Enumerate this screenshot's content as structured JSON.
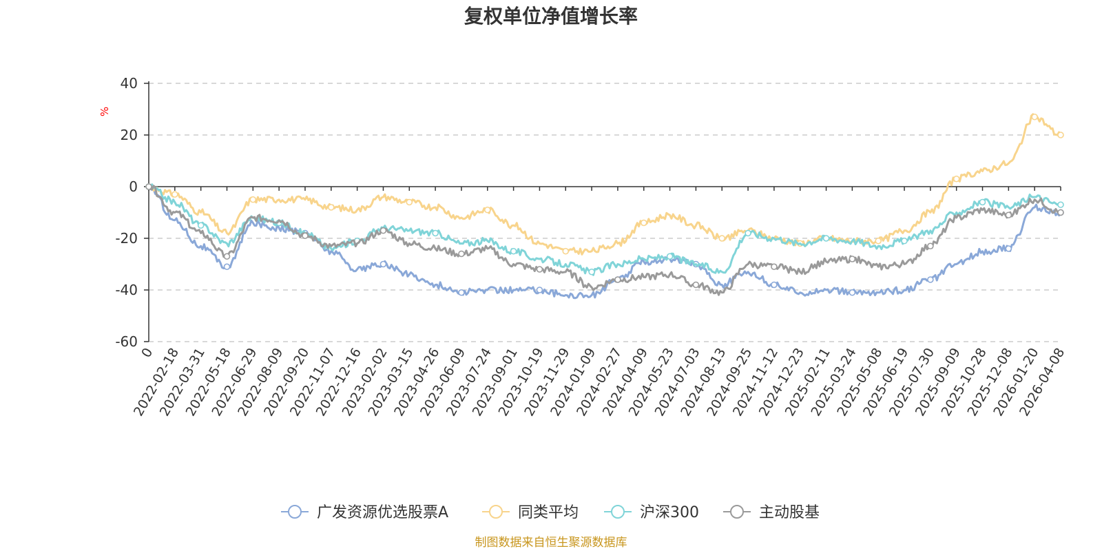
{
  "chart_data": {
    "type": "line",
    "title": "复权单位净值增长率",
    "ylabel": "%",
    "xlabel": "",
    "ylim": [
      -60,
      40
    ],
    "yticks": [
      40,
      20,
      0,
      -20,
      -40,
      -60
    ],
    "grid": true,
    "legend_position": "bottom-center",
    "categories": [
      "0",
      "2022-02-18",
      "2022-03-31",
      "2022-05-18",
      "2022-06-29",
      "2022-08-09",
      "2022-09-20",
      "2022-11-07",
      "2022-12-16",
      "2023-02-02",
      "2023-03-15",
      "2023-04-26",
      "2023-06-09",
      "2023-07-24",
      "2023-09-01",
      "2023-10-19",
      "2023-11-29",
      "2024-01-09",
      "2024-02-27",
      "2024-04-09",
      "2024-05-23",
      "2024-07-03",
      "2024-08-13",
      "2024-09-25",
      "2024-11-12",
      "2024-12-23",
      "2025-02-11",
      "2025-03-24",
      "2025-05-08",
      "2025-06-19",
      "2025-07-30",
      "2025-09-09",
      "2025-10-28",
      "2025-12-08",
      "2026-01-20",
      "2026-04-08"
    ],
    "series": [
      {
        "name": "广发资源优选股票A",
        "color": "#8aa8d8",
        "values": [
          0,
          -13,
          -23,
          -31,
          -14,
          -16,
          -18,
          -25,
          -32,
          -30,
          -34,
          -38,
          -41,
          -40,
          -40,
          -40,
          -42,
          -42,
          -36,
          -29,
          -28,
          -30,
          -38,
          -33,
          -38,
          -41,
          -40,
          -41,
          -41,
          -40,
          -36,
          -30,
          -25,
          -24,
          -8,
          -10
        ]
      },
      {
        "name": "同类平均",
        "color": "#f8d48c",
        "values": [
          0,
          -3,
          -10,
          -18,
          -5,
          -5,
          -5,
          -8,
          -9,
          -4,
          -6,
          -8,
          -12,
          -9,
          -15,
          -22,
          -25,
          -25,
          -22,
          -14,
          -11,
          -15,
          -20,
          -17,
          -20,
          -22,
          -20,
          -21,
          -21,
          -17,
          -10,
          3,
          6,
          9,
          27,
          20
        ]
      },
      {
        "name": "沪深300",
        "color": "#80d4d8",
        "values": [
          0,
          -6,
          -15,
          -22,
          -12,
          -14,
          -18,
          -24,
          -21,
          -16,
          -17,
          -18,
          -22,
          -21,
          -25,
          -28,
          -30,
          -33,
          -30,
          -28,
          -27,
          -30,
          -33,
          -18,
          -20,
          -22,
          -20,
          -21,
          -23,
          -21,
          -17,
          -10,
          -6,
          -8,
          -4,
          -7
        ]
      },
      {
        "name": "主动股基",
        "color": "#9a9a9a",
        "values": [
          0,
          -10,
          -18,
          -27,
          -12,
          -13,
          -19,
          -23,
          -22,
          -17,
          -22,
          -24,
          -26,
          -24,
          -30,
          -32,
          -33,
          -39,
          -36,
          -35,
          -34,
          -38,
          -41,
          -30,
          -31,
          -33,
          -29,
          -28,
          -31,
          -30,
          -23,
          -12,
          -9,
          -11,
          -5,
          -10
        ]
      }
    ]
  },
  "legend": {
    "items": [
      {
        "label": "广发资源优选股票A",
        "color": "#8aa8d8"
      },
      {
        "label": "同类平均",
        "color": "#f8d48c"
      },
      {
        "label": "沪深300",
        "color": "#80d4d8"
      },
      {
        "label": "主动股基",
        "color": "#9a9a9a"
      }
    ]
  },
  "source_text": "制图数据来自恒生聚源数据库"
}
